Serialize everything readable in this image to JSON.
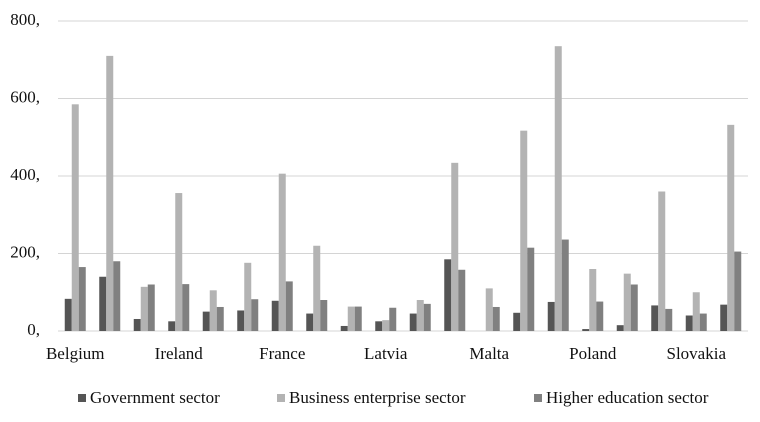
{
  "chart_data": {
    "type": "bar",
    "categories": [
      "Belgium",
      null,
      null,
      "Ireland",
      null,
      null,
      "France",
      null,
      null,
      "Latvia",
      null,
      null,
      "Malta",
      null,
      null,
      "Poland",
      null,
      null,
      "Slovakia",
      null
    ],
    "series": [
      {
        "name": "Government sector",
        "color": "#555555",
        "values": [
          83,
          140,
          31,
          25,
          50,
          53,
          78,
          45,
          13,
          25,
          45,
          185,
          0,
          47,
          75,
          5,
          15,
          66,
          40,
          68
        ]
      },
      {
        "name": "Business enterprise sector",
        "color": "#b3b3b3",
        "values": [
          585,
          710,
          114,
          356,
          105,
          176,
          406,
          220,
          63,
          28,
          80,
          434,
          110,
          517,
          735,
          160,
          148,
          360,
          100,
          532
        ]
      },
      {
        "name": "Higher education sector",
        "color": "#808080",
        "values": [
          165,
          180,
          120,
          121,
          62,
          82,
          128,
          80,
          63,
          60,
          70,
          158,
          62,
          215,
          236,
          76,
          120,
          57,
          45,
          205
        ]
      }
    ],
    "ylim": [
      0,
      800
    ],
    "yticks": [
      {
        "value": 0,
        "label": "0,"
      },
      {
        "value": 200,
        "label": "200,"
      },
      {
        "value": 400,
        "label": "400,"
      },
      {
        "value": 600,
        "label": "600,"
      },
      {
        "value": 800,
        "label": "800,"
      }
    ],
    "grid": true,
    "legend": "bottom"
  }
}
